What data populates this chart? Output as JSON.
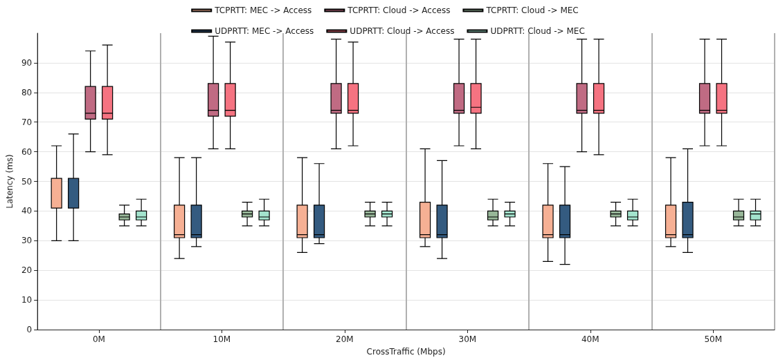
{
  "chart_data": {
    "type": "box",
    "xlabel": "CrossTraffic (Mbps)",
    "ylabel": "Latency (ms)",
    "categories": [
      "0M",
      "10M",
      "20M",
      "30M",
      "40M",
      "50M"
    ],
    "ylim": [
      0,
      100
    ],
    "yticks": [
      0,
      10,
      20,
      30,
      40,
      50,
      60,
      70,
      80,
      90
    ],
    "grid": true,
    "legend": "top",
    "series": [
      {
        "name": "TCPRTT: MEC -> Access",
        "color": "#f6b094",
        "boxes": [
          {
            "low": 30,
            "q1": 41,
            "median": 41,
            "q3": 51,
            "high": 62
          },
          {
            "low": 24,
            "q1": 31,
            "median": 32,
            "q3": 42,
            "high": 58
          },
          {
            "low": 26,
            "q1": 31,
            "median": 32,
            "q3": 42,
            "high": 58
          },
          {
            "low": 28,
            "q1": 31,
            "median": 32,
            "q3": 43,
            "high": 61
          },
          {
            "low": 23,
            "q1": 31,
            "median": 32,
            "q3": 42,
            "high": 56
          },
          {
            "low": 28,
            "q1": 31,
            "median": 32,
            "q3": 42,
            "high": 58
          }
        ]
      },
      {
        "name": "UDPRTT: MEC -> Access",
        "color": "#345b80",
        "boxes": [
          {
            "low": 30,
            "q1": 41,
            "median": 41,
            "q3": 51,
            "high": 66
          },
          {
            "low": 28,
            "q1": 31,
            "median": 32,
            "q3": 42,
            "high": 58
          },
          {
            "low": 29,
            "q1": 31,
            "median": 32,
            "q3": 42,
            "high": 56
          },
          {
            "low": 24,
            "q1": 31,
            "median": 32,
            "q3": 42,
            "high": 57
          },
          {
            "low": 22,
            "q1": 31,
            "median": 32,
            "q3": 42,
            "high": 55
          },
          {
            "low": 26,
            "q1": 31,
            "median": 32,
            "q3": 43,
            "high": 61
          }
        ]
      },
      {
        "name": "TCPRTT: Cloud -> Access",
        "color": "#c06b83",
        "boxes": [
          {
            "low": 60,
            "q1": 71,
            "median": 73,
            "q3": 82,
            "high": 94
          },
          {
            "low": 61,
            "q1": 72,
            "median": 74,
            "q3": 83,
            "high": 99
          },
          {
            "low": 61,
            "q1": 73,
            "median": 74,
            "q3": 83,
            "high": 98
          },
          {
            "low": 62,
            "q1": 73,
            "median": 74,
            "q3": 83,
            "high": 98
          },
          {
            "low": 60,
            "q1": 73,
            "median": 74,
            "q3": 83,
            "high": 98
          },
          {
            "low": 62,
            "q1": 73,
            "median": 74,
            "q3": 83,
            "high": 98
          }
        ]
      },
      {
        "name": "UDPRTT: Cloud -> Access",
        "color": "#f57381",
        "boxes": [
          {
            "low": 59,
            "q1": 71,
            "median": 73,
            "q3": 82,
            "high": 96
          },
          {
            "low": 61,
            "q1": 72,
            "median": 74,
            "q3": 83,
            "high": 97
          },
          {
            "low": 62,
            "q1": 73,
            "median": 74,
            "q3": 83,
            "high": 97
          },
          {
            "low": 61,
            "q1": 73,
            "median": 75,
            "q3": 83,
            "high": 98
          },
          {
            "low": 59,
            "q1": 73,
            "median": 74,
            "q3": 83,
            "high": 98
          },
          {
            "low": 62,
            "q1": 73,
            "median": 74,
            "q3": 83,
            "high": 98
          }
        ]
      },
      {
        "name": "TCPRTT: Cloud -> MEC",
        "color": "#97b698",
        "boxes": [
          {
            "low": 35,
            "q1": 37,
            "median": 38,
            "q3": 39,
            "high": 42
          },
          {
            "low": 35,
            "q1": 38,
            "median": 39,
            "q3": 40,
            "high": 43
          },
          {
            "low": 35,
            "q1": 38,
            "median": 39,
            "q3": 40,
            "high": 43
          },
          {
            "low": 35,
            "q1": 37,
            "median": 38,
            "q3": 40,
            "high": 44
          },
          {
            "low": 35,
            "q1": 38,
            "median": 39,
            "q3": 40,
            "high": 43
          },
          {
            "low": 35,
            "q1": 37,
            "median": 38,
            "q3": 40,
            "high": 44
          }
        ]
      },
      {
        "name": "UDPRTT: Cloud -> MEC",
        "color": "#a3e3cd",
        "boxes": [
          {
            "low": 35,
            "q1": 37,
            "median": 38,
            "q3": 40,
            "high": 44
          },
          {
            "low": 35,
            "q1": 37,
            "median": 38,
            "q3": 40,
            "high": 44
          },
          {
            "low": 35,
            "q1": 38,
            "median": 39,
            "q3": 40,
            "high": 43
          },
          {
            "low": 35,
            "q1": 38,
            "median": 39,
            "q3": 40,
            "high": 43
          },
          {
            "low": 35,
            "q1": 37,
            "median": 38,
            "q3": 40,
            "high": 44
          },
          {
            "low": 35,
            "q1": 37,
            "median": 39,
            "q3": 40,
            "high": 44
          }
        ]
      }
    ]
  }
}
